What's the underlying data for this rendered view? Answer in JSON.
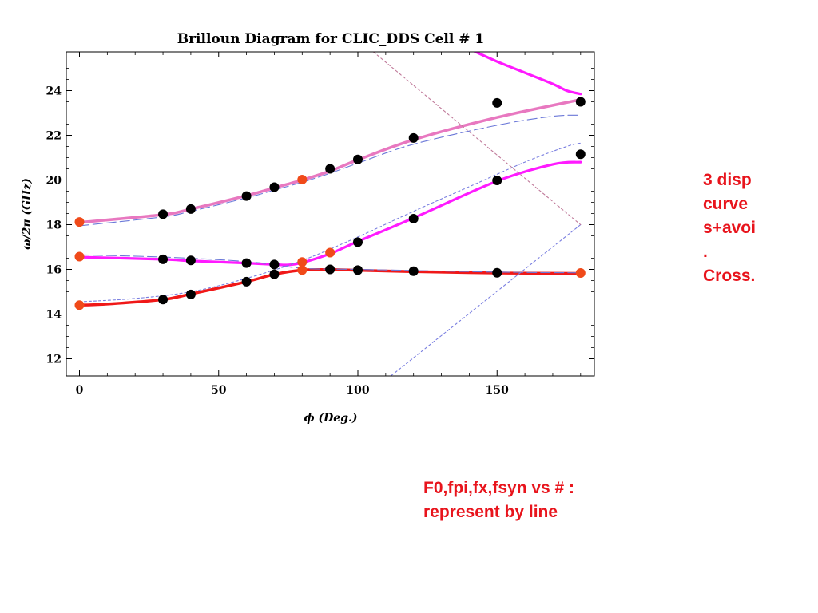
{
  "chart_data": {
    "type": "scatter",
    "title": "Brilloun Diagram for CLIC_DDS Cell # 1",
    "xlabel": "ϕ (Deg.)",
    "ylabel": "ω/2π (GHz)",
    "xlim": [
      -5,
      185
    ],
    "ylim": [
      11.25,
      26
    ],
    "x_ticks": [
      0,
      50,
      100,
      150
    ],
    "y_ticks": [
      12,
      14,
      16,
      18,
      20,
      22,
      24
    ],
    "grid": false,
    "colors": {
      "magenta": "#ff1aff",
      "pink": "#e878c0",
      "red": "#f01818",
      "dashed_blue": "#6b78d8",
      "dotted_blue": "#7a7fe0",
      "dotted_rose": "#c07a9a",
      "marker_black": "#000000",
      "marker_orange": "#f04a1a"
    },
    "curves": [
      {
        "style": "pink",
        "x": [
          0,
          30,
          40,
          60,
          70,
          80,
          90,
          100,
          120,
          150,
          180
        ],
        "y": [
          18.1,
          18.45,
          18.7,
          19.3,
          19.65,
          20.0,
          20.4,
          20.9,
          21.8,
          22.8,
          23.6
        ]
      },
      {
        "style": "magenta",
        "x": [
          0,
          30,
          40,
          60,
          70,
          75,
          80,
          90,
          100,
          120,
          150,
          170,
          180
        ],
        "y": [
          16.55,
          16.45,
          16.38,
          16.28,
          16.22,
          16.2,
          16.3,
          16.7,
          17.25,
          18.3,
          19.95,
          20.7,
          20.8
        ]
      },
      {
        "style": "red",
        "x": [
          0,
          10,
          30,
          40,
          60,
          70,
          80,
          90,
          100,
          120,
          150,
          180
        ],
        "y": [
          14.4,
          14.45,
          14.65,
          14.9,
          15.45,
          15.78,
          15.97,
          15.99,
          15.96,
          15.9,
          15.84,
          15.82
        ]
      },
      {
        "style": "magenta",
        "x": [
          142,
          150,
          160,
          170,
          175,
          180
        ],
        "y": [
          25.75,
          25.3,
          24.8,
          24.3,
          24.0,
          23.85
        ]
      },
      {
        "style": "dashed_blue",
        "x": [
          0,
          30,
          40,
          60,
          70,
          80,
          90,
          100,
          120,
          150,
          170,
          180
        ],
        "y": [
          17.95,
          18.35,
          18.6,
          19.2,
          19.55,
          19.9,
          20.3,
          20.75,
          21.6,
          22.45,
          22.85,
          22.9
        ]
      },
      {
        "style": "dashed_blue",
        "x": [
          0,
          30,
          60,
          80,
          100,
          150,
          180
        ],
        "y": [
          16.65,
          16.55,
          16.35,
          16.05,
          16.0,
          15.88,
          15.85
        ]
      },
      {
        "style": "dotted_blue",
        "x": [
          0,
          20,
          40,
          60,
          80,
          100,
          120,
          140,
          160,
          175,
          180
        ],
        "y": [
          14.55,
          14.7,
          15.0,
          15.6,
          16.4,
          17.45,
          18.6,
          19.7,
          20.8,
          21.5,
          21.65
        ]
      },
      {
        "style": "dotted_blue",
        "x": [
          112,
          180
        ],
        "y": [
          11.25,
          18.0
        ]
      },
      {
        "style": "dotted_rose",
        "x": [
          103,
          180
        ],
        "y": [
          26.0,
          18.0
        ]
      }
    ],
    "points_black": [
      [
        30,
        18.47
      ],
      [
        40,
        18.7
      ],
      [
        60,
        19.28
      ],
      [
        70,
        19.68
      ],
      [
        90,
        20.5
      ],
      [
        100,
        20.92
      ],
      [
        120,
        21.88
      ],
      [
        150,
        23.45
      ],
      [
        180,
        23.5
      ],
      [
        30,
        16.45
      ],
      [
        40,
        16.4
      ],
      [
        60,
        16.28
      ],
      [
        70,
        16.22
      ],
      [
        100,
        17.22
      ],
      [
        120,
        18.27
      ],
      [
        150,
        19.98
      ],
      [
        180,
        21.15
      ],
      [
        30,
        14.65
      ],
      [
        40,
        14.88
      ],
      [
        60,
        15.45
      ],
      [
        70,
        15.78
      ],
      [
        90,
        16.0
      ],
      [
        100,
        15.97
      ],
      [
        120,
        15.92
      ],
      [
        150,
        15.85
      ]
    ],
    "points_orange": [
      [
        0,
        18.12
      ],
      [
        80,
        20.02
      ],
      [
        0,
        16.57
      ],
      [
        80,
        16.33
      ],
      [
        90,
        16.75
      ],
      [
        0,
        14.4
      ],
      [
        80,
        15.97
      ],
      [
        180,
        15.84
      ]
    ]
  },
  "annotations": {
    "right_note": "3 disp\ncurve\ns+avoi\n.\nCross.",
    "bottom_note": "F0,fpi,fx,fsyn vs # :\nrepresent by line"
  }
}
